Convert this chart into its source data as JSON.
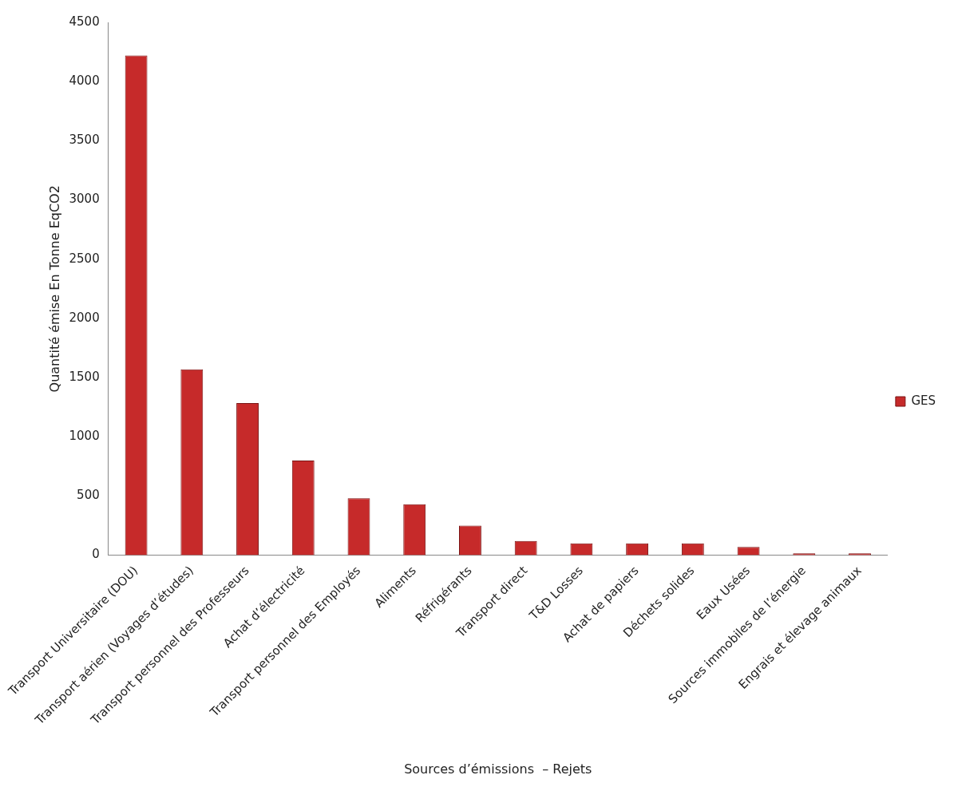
{
  "chart_data": {
    "type": "bar",
    "xlabel": "Sources d’émissions  – Rejets",
    "ylabel": "Quantité émise En Tonne EqCO2",
    "categories": [
      "Transport Universitaire (DOU)",
      "Transport aérien (Voyages d’études)",
      "Transport personnel des Professeurs",
      "Achat d’électricité",
      "Transport personnel des Employés",
      "Aliments",
      "Réfrigérants",
      "Transport direct",
      "T&D Losses",
      "Achat de papiers",
      "Déchets solides",
      "Eaux Usées",
      "Sources immobiles de l’énergie",
      "Engrais et élevage animaux"
    ],
    "series": [
      {
        "name": "GES",
        "color": "#c62a2a",
        "values": [
          4220,
          1570,
          1285,
          800,
          480,
          430,
          250,
          120,
          100,
          100,
          100,
          70,
          15,
          15
        ]
      }
    ],
    "ylim": [
      0,
      4500
    ],
    "yticks": [
      0,
      500,
      1000,
      1500,
      2000,
      2500,
      3000,
      3500,
      4000,
      4500
    ],
    "grid": false,
    "legend": "right"
  }
}
